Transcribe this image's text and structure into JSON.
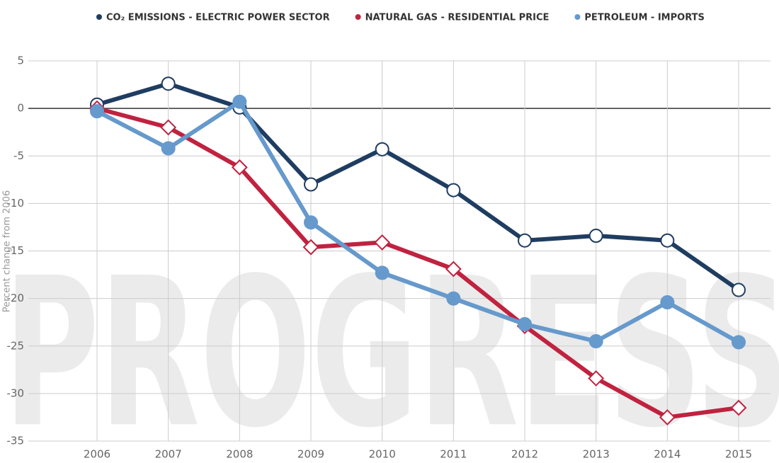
{
  "chart_data": {
    "type": "line",
    "watermark": "PROGRESS",
    "y_label": "Percent change from 2006",
    "categories": [
      "2006",
      "2007",
      "2008",
      "2009",
      "2010",
      "2011",
      "2012",
      "2013",
      "2014",
      "2015"
    ],
    "series": [
      {
        "name": "CO₂ EMISSIONS - ELECTRIC POWER SECTOR",
        "color": "#1f3d61",
        "marker": "open-circle",
        "values": [
          0.4,
          2.6,
          0.1,
          -8.0,
          -4.3,
          -8.6,
          -13.9,
          -13.4,
          -13.9,
          -19.1
        ]
      },
      {
        "name": "NATURAL GAS - RESIDENTIAL PRICE",
        "color": "#c0223f",
        "marker": "open-diamond",
        "values": [
          0,
          -2.0,
          -6.2,
          -14.6,
          -14.1,
          -16.9,
          -22.9,
          -28.4,
          -32.5,
          -31.5
        ]
      },
      {
        "name": "PETROLEUM - IMPORTS",
        "color": "#6699cc",
        "marker": "filled-circle",
        "values": [
          -0.3,
          -4.2,
          0.7,
          -12.0,
          -17.3,
          -20.0,
          -22.7,
          -24.5,
          -20.4,
          -24.6
        ]
      }
    ],
    "ylim": [
      -35,
      5
    ],
    "yticks": [
      5,
      0,
      -5,
      -10,
      -15,
      -20,
      -25,
      -30,
      -35
    ],
    "grid": true,
    "legend": "top"
  }
}
